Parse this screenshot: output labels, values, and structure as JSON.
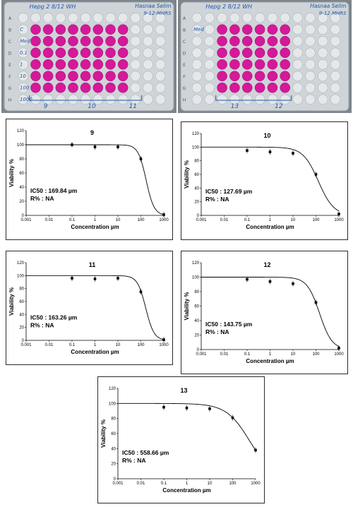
{
  "photos": {
    "left": {
      "top_line": "Hepg 2 8/12 WH",
      "top_right": [
        "Hasnaa Selim",
        "9-12-MHRS"
      ],
      "row_letters": [
        "A",
        "B",
        "C",
        "D",
        "E",
        "F",
        "G",
        "H"
      ],
      "row_notes": [
        "C",
        "Med",
        "0.1",
        "1",
        "10",
        "100",
        "1000"
      ],
      "group_labels": [
        "9",
        "10",
        "11"
      ]
    },
    "right": {
      "top_line": "Hepg 2 8/12 WH",
      "top_right": [
        "Hasnaa Selim",
        "9-12 MHRS"
      ],
      "row_letters": [
        "A",
        "B",
        "C",
        "D",
        "E",
        "F",
        "G",
        "H"
      ],
      "row_notes": [
        "Med"
      ],
      "group_labels": [
        "13",
        "12"
      ]
    }
  },
  "colors": {
    "well_pink": "#d6189a",
    "ink": "#2456a8",
    "plate": "#cfd4d8"
  },
  "chart_data": [
    {
      "id": "9",
      "type": "scatter",
      "title": "9",
      "xlabel": "Concentration µm",
      "ylabel": "Viability %",
      "x_scale": "log",
      "xlim": [
        0.001,
        1000
      ],
      "ylim": [
        0,
        120
      ],
      "x_ticks": [
        "0.001",
        "0.01",
        "0.1",
        "1",
        "10",
        "100",
        "1000"
      ],
      "y_ticks": [
        "0",
        "20",
        "40",
        "60",
        "80",
        "100",
        "120"
      ],
      "points": [
        {
          "x": 0.1,
          "y": 100
        },
        {
          "x": 1,
          "y": 97
        },
        {
          "x": 10,
          "y": 97
        },
        {
          "x": 100,
          "y": 80
        },
        {
          "x": 1000,
          "y": 1
        }
      ],
      "curve": {
        "top": 100,
        "ic50": 169.84,
        "hill": 2.5
      },
      "ic50_text": "IC50 : 169.84 µm",
      "r_text": "R% : NA"
    },
    {
      "id": "10",
      "type": "scatter",
      "title": "10",
      "xlabel": "Concentration µm",
      "ylabel": "Viability %",
      "x_scale": "log",
      "xlim": [
        0.001,
        1000
      ],
      "ylim": [
        0,
        120
      ],
      "x_ticks": [
        "0.001",
        "0.01",
        "0.1",
        "1",
        "10",
        "100",
        "1000"
      ],
      "y_ticks": [
        "0",
        "20",
        "40",
        "60",
        "80",
        "100",
        "120"
      ],
      "points": [
        {
          "x": 0.1,
          "y": 95
        },
        {
          "x": 1,
          "y": 93
        },
        {
          "x": 10,
          "y": 91
        },
        {
          "x": 100,
          "y": 60
        },
        {
          "x": 1000,
          "y": 2
        }
      ],
      "curve": {
        "top": 100,
        "ic50": 127.69,
        "hill": 1.3
      },
      "ic50_text": "IC50 : 127.69 µm",
      "r_text": "R% : NA"
    },
    {
      "id": "11",
      "type": "scatter",
      "title": "11",
      "xlabel": "Concentration µm",
      "ylabel": "Viability %",
      "x_scale": "log",
      "xlim": [
        0.001,
        1000
      ],
      "ylim": [
        0,
        120
      ],
      "x_ticks": [
        "0.001",
        "0.01",
        "0.1",
        "1",
        "10",
        "100",
        "1000"
      ],
      "y_ticks": [
        "0",
        "20",
        "40",
        "60",
        "80",
        "100",
        "120"
      ],
      "points": [
        {
          "x": 0.1,
          "y": 96
        },
        {
          "x": 1,
          "y": 95
        },
        {
          "x": 10,
          "y": 96
        },
        {
          "x": 100,
          "y": 75
        },
        {
          "x": 1000,
          "y": 1
        }
      ],
      "curve": {
        "top": 100,
        "ic50": 163.26,
        "hill": 2.4
      },
      "ic50_text": "IC50 : 163.26 µm",
      "r_text": "R% : NA"
    },
    {
      "id": "12",
      "type": "scatter",
      "title": "12",
      "xlabel": "Concentration µm",
      "ylabel": "Viability %",
      "x_scale": "log",
      "xlim": [
        0.001,
        1000
      ],
      "ylim": [
        0,
        120
      ],
      "x_ticks": [
        "0.001",
        "0.01",
        "0.1",
        "1",
        "10",
        "100",
        "1000"
      ],
      "y_ticks": [
        "0",
        "20",
        "40",
        "60",
        "80",
        "100",
        "120"
      ],
      "points": [
        {
          "x": 0.1,
          "y": 97
        },
        {
          "x": 1,
          "y": 94
        },
        {
          "x": 10,
          "y": 91
        },
        {
          "x": 100,
          "y": 65
        },
        {
          "x": 1000,
          "y": 2
        }
      ],
      "curve": {
        "top": 100,
        "ic50": 143.75,
        "hill": 1.6
      },
      "ic50_text": "IC50 : 143.75 µm",
      "r_text": "R% : NA"
    },
    {
      "id": "13",
      "type": "scatter",
      "title": "13",
      "xlabel": "Concentration µm",
      "ylabel": "Viability %",
      "x_scale": "log",
      "xlim": [
        0.001,
        1000
      ],
      "ylim": [
        0,
        120
      ],
      "x_ticks": [
        "0.001",
        "0.01",
        "0.1",
        "1",
        "10",
        "100",
        "1000"
      ],
      "y_ticks": [
        "0",
        "20",
        "40",
        "60",
        "80",
        "100",
        "120"
      ],
      "points": [
        {
          "x": 0.1,
          "y": 95
        },
        {
          "x": 1,
          "y": 94
        },
        {
          "x": 10,
          "y": 93
        },
        {
          "x": 100,
          "y": 81
        },
        {
          "x": 1000,
          "y": 38
        }
      ],
      "curve": {
        "top": 100,
        "ic50": 558.66,
        "hill": 0.85
      },
      "ic50_text": "IC50 : 558.66 µm",
      "r_text": "R% : NA"
    }
  ]
}
